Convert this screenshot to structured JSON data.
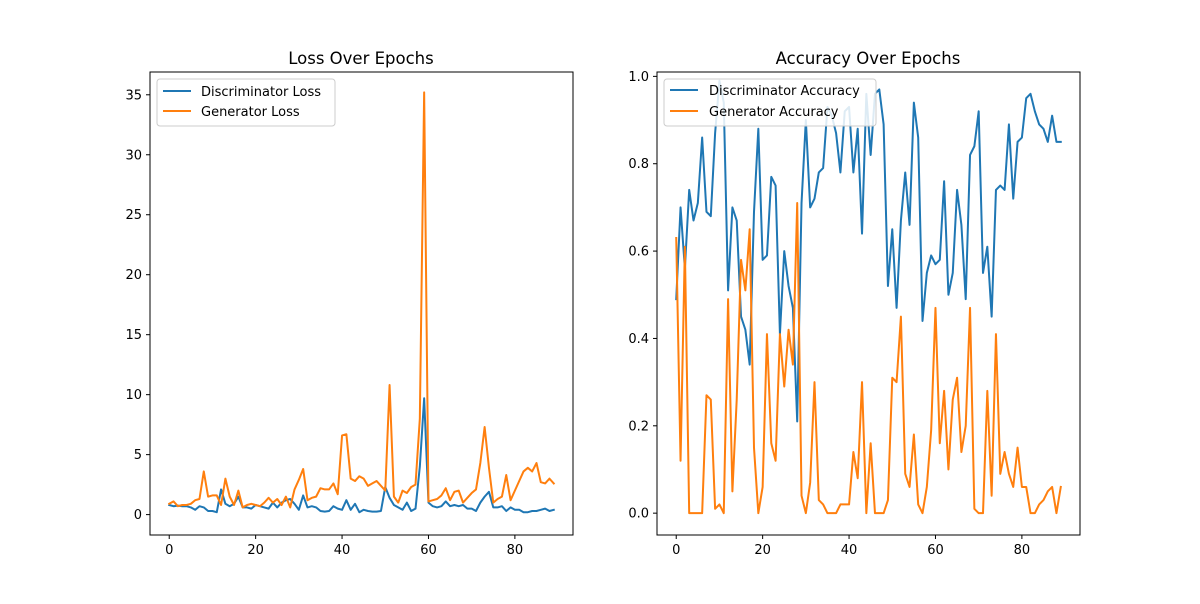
{
  "figure": {
    "panels": [
      "loss",
      "accuracy"
    ]
  },
  "colors": {
    "discriminator": "#1f77b4",
    "generator": "#ff7f0e"
  },
  "chart_data": [
    {
      "id": "loss",
      "type": "line",
      "title": "Loss Over Epochs",
      "xlabel": "",
      "ylabel": "",
      "xlim": [
        -4.45,
        93.45
      ],
      "ylim": [
        -1.7,
        36.9
      ],
      "xticks": [
        0,
        20,
        40,
        60,
        80
      ],
      "yticks": [
        0,
        5,
        10,
        15,
        20,
        25,
        30,
        35
      ],
      "ytick_labels": [
        "0",
        "5",
        "10",
        "15",
        "20",
        "25",
        "30",
        "35"
      ],
      "legend_position": "upper-left",
      "series": [
        {
          "name": "Discriminator Loss",
          "color": "#1f77b4",
          "values": [
            0.8,
            0.7,
            0.75,
            0.7,
            0.7,
            0.6,
            0.4,
            0.7,
            0.6,
            0.3,
            0.3,
            0.2,
            2.1,
            0.9,
            0.7,
            0.9,
            1.5,
            0.6,
            0.6,
            0.5,
            0.8,
            0.7,
            0.6,
            0.5,
            1.0,
            0.6,
            1.0,
            1.2,
            1.3,
            0.9,
            0.4,
            1.6,
            0.6,
            0.7,
            0.6,
            0.3,
            0.25,
            0.3,
            0.7,
            0.5,
            0.4,
            1.2,
            0.4,
            0.9,
            0.2,
            0.4,
            0.3,
            0.25,
            0.25,
            0.3,
            2.3,
            1.4,
            0.8,
            0.6,
            0.4,
            1.0,
            0.3,
            0.5,
            4.0,
            9.7,
            1.0,
            0.7,
            0.6,
            0.7,
            1.1,
            0.7,
            0.8,
            0.7,
            0.8,
            0.5,
            0.5,
            0.3,
            1.0,
            1.5,
            1.9,
            0.6,
            0.6,
            0.7,
            0.3,
            0.6,
            0.4,
            0.4,
            0.2,
            0.2,
            0.3,
            0.3,
            0.4,
            0.5,
            0.3,
            0.4
          ]
        },
        {
          "name": "Generator Loss",
          "color": "#ff7f0e",
          "values": [
            0.9,
            1.1,
            0.7,
            0.8,
            0.8,
            0.9,
            1.2,
            1.3,
            3.6,
            1.5,
            1.6,
            1.6,
            0.8,
            3.0,
            1.5,
            0.8,
            2.0,
            0.6,
            0.8,
            0.9,
            0.8,
            0.7,
            1.0,
            1.4,
            1.0,
            1.3,
            0.8,
            1.5,
            0.6,
            2.1,
            2.9,
            3.8,
            1.2,
            1.4,
            1.5,
            2.2,
            2.1,
            2.1,
            2.6,
            1.7,
            6.6,
            6.7,
            3.0,
            2.8,
            3.2,
            3.0,
            2.4,
            2.6,
            2.8,
            2.4,
            2.0,
            10.8,
            1.5,
            1.0,
            2.0,
            1.8,
            2.3,
            2.5,
            8.0,
            35.2,
            1.1,
            1.2,
            1.3,
            1.6,
            2.2,
            1.2,
            1.9,
            2.0,
            1.0,
            1.4,
            1.8,
            2.1,
            4.3,
            7.3,
            3.9,
            1.0,
            1.3,
            1.5,
            3.3,
            1.2,
            2.0,
            2.8,
            3.6,
            3.9,
            3.6,
            4.3,
            2.7,
            2.6,
            3.0,
            2.6
          ]
        }
      ]
    },
    {
      "id": "accuracy",
      "type": "line",
      "title": "Accuracy Over Epochs",
      "xlabel": "",
      "ylabel": "",
      "xlim": [
        -4.45,
        93.45
      ],
      "ylim": [
        -0.05,
        1.01
      ],
      "xticks": [
        0,
        20,
        40,
        60,
        80
      ],
      "yticks": [
        0.0,
        0.2,
        0.4,
        0.6,
        0.8,
        1.0
      ],
      "ytick_labels": [
        "0.0",
        "0.2",
        "0.4",
        "0.6",
        "0.8",
        "1.0"
      ],
      "legend_position": "upper-left",
      "series": [
        {
          "name": "Discriminator Accuracy",
          "color": "#1f77b4",
          "values": [
            0.49,
            0.7,
            0.56,
            0.74,
            0.67,
            0.71,
            0.86,
            0.69,
            0.68,
            0.87,
            0.99,
            0.94,
            0.51,
            0.7,
            0.67,
            0.45,
            0.42,
            0.34,
            0.69,
            0.88,
            0.58,
            0.59,
            0.77,
            0.75,
            0.41,
            0.6,
            0.52,
            0.47,
            0.21,
            0.71,
            0.9,
            0.7,
            0.72,
            0.78,
            0.79,
            0.93,
            0.91,
            0.87,
            0.78,
            0.92,
            0.93,
            0.78,
            0.88,
            0.64,
            0.96,
            0.82,
            0.96,
            0.97,
            0.89,
            0.52,
            0.65,
            0.47,
            0.67,
            0.78,
            0.66,
            0.94,
            0.86,
            0.44,
            0.55,
            0.59,
            0.57,
            0.58,
            0.76,
            0.5,
            0.55,
            0.74,
            0.66,
            0.49,
            0.82,
            0.84,
            0.92,
            0.55,
            0.61,
            0.45,
            0.74,
            0.75,
            0.74,
            0.89,
            0.72,
            0.85,
            0.86,
            0.95,
            0.96,
            0.92,
            0.89,
            0.88,
            0.85,
            0.91,
            0.85,
            0.85
          ]
        },
        {
          "name": "Generator Accuracy",
          "color": "#ff7f0e",
          "values": [
            0.63,
            0.12,
            0.61,
            0.0,
            0.0,
            0.0,
            0.0,
            0.27,
            0.26,
            0.01,
            0.02,
            0.0,
            0.49,
            0.05,
            0.26,
            0.58,
            0.51,
            0.65,
            0.15,
            0.0,
            0.06,
            0.41,
            0.16,
            0.12,
            0.41,
            0.29,
            0.42,
            0.34,
            0.71,
            0.04,
            0.0,
            0.07,
            0.3,
            0.03,
            0.02,
            0.0,
            0.0,
            0.0,
            0.02,
            0.02,
            0.02,
            0.14,
            0.08,
            0.3,
            0.0,
            0.16,
            0.0,
            0.0,
            0.0,
            0.03,
            0.31,
            0.3,
            0.45,
            0.09,
            0.06,
            0.18,
            0.02,
            0.0,
            0.06,
            0.19,
            0.47,
            0.16,
            0.28,
            0.1,
            0.26,
            0.31,
            0.14,
            0.2,
            0.47,
            0.01,
            0.0,
            0.0,
            0.28,
            0.04,
            0.41,
            0.09,
            0.14,
            0.09,
            0.06,
            0.15,
            0.06,
            0.06,
            0.0,
            0.0,
            0.02,
            0.03,
            0.05,
            0.06,
            0.0,
            0.06
          ]
        }
      ]
    }
  ]
}
